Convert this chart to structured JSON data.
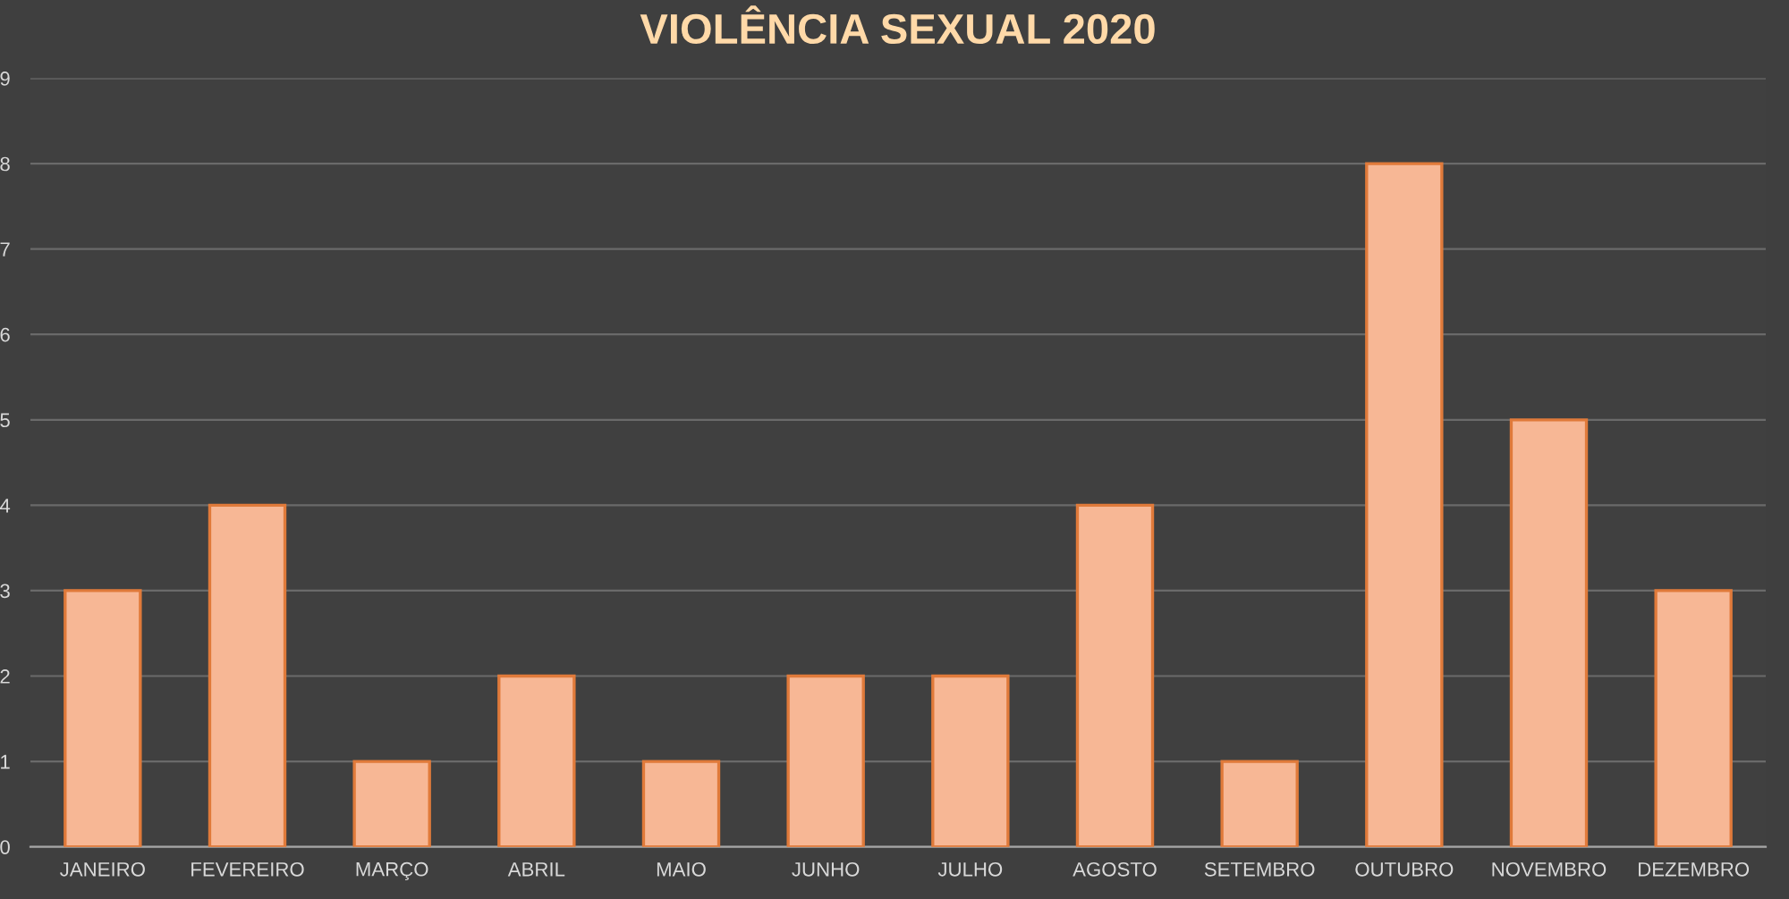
{
  "chart_data": {
    "type": "bar",
    "title": "VIOLÊNCIA SEXUAL 2020",
    "categories": [
      "JANEIRO",
      "FEVEREIRO",
      "MARÇO",
      "ABRIL",
      "MAIO",
      "JUNHO",
      "JULHO",
      "AGOSTO",
      "SETEMBRO",
      "OUTUBRO",
      "NOVEMBRO",
      "DEZEMBRO"
    ],
    "values": [
      3,
      4,
      1,
      2,
      1,
      2,
      2,
      4,
      1,
      8,
      5,
      3
    ],
    "color": "#f7b795",
    "ylim": [
      0,
      9
    ],
    "yticks": [
      0,
      1,
      2,
      3,
      4,
      5,
      6,
      7,
      8,
      9
    ],
    "grid": "y",
    "legend": false
  }
}
